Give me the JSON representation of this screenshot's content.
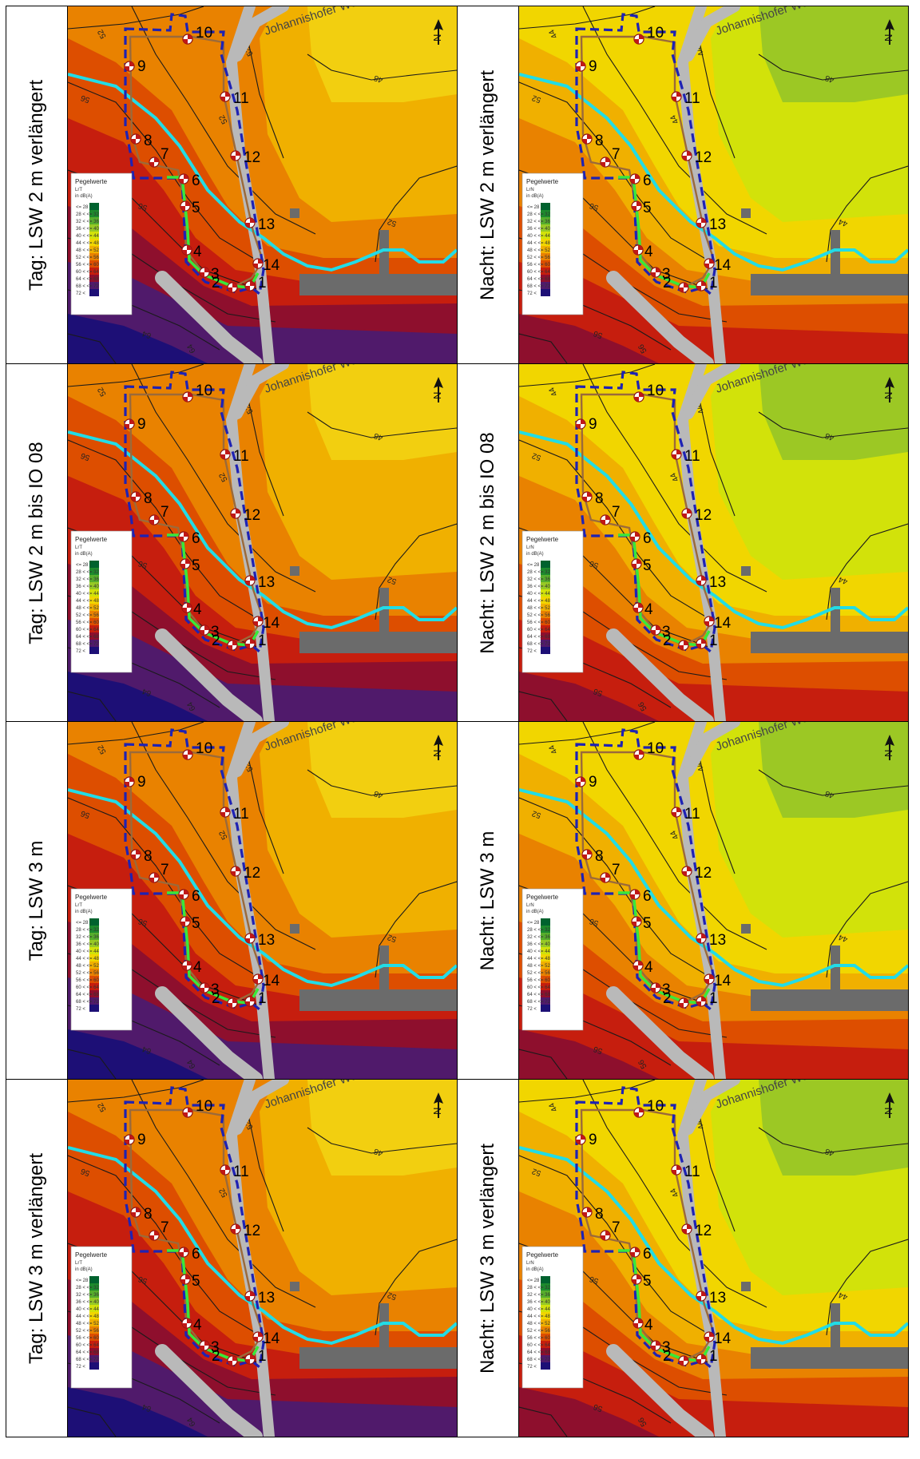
{
  "rows": [
    {
      "tag_label": "Tag: LSW 2 m verlängert",
      "nacht_label": "Nacht: LSW 2 m verlängert",
      "contours_tag": [
        "52",
        "48",
        "52",
        "56",
        "52",
        "56",
        "60",
        "64",
        "64",
        "52"
      ],
      "contours_nacht": [
        "44",
        "48",
        "44",
        "52",
        "44",
        "56",
        "60",
        "56",
        "56",
        "44"
      ]
    },
    {
      "tag_label": "Tag: LSW 2 m bis IO 08",
      "nacht_label": "Nacht: LSW 2 m bis IO 08",
      "contours_tag": [
        "52",
        "48",
        "52",
        "56",
        "52",
        "56",
        "60",
        "64",
        "64",
        "52"
      ],
      "contours_nacht": [
        "44",
        "48",
        "44",
        "52",
        "44",
        "56",
        "60",
        "56",
        "56",
        "44"
      ]
    },
    {
      "tag_label": "Tag: LSW 3 m",
      "nacht_label": "Nacht: LSW 3 m",
      "contours_tag": [
        "52",
        "48",
        "52",
        "56",
        "52",
        "56",
        "60",
        "64",
        "64",
        "52"
      ],
      "contours_nacht": [
        "44",
        "48",
        "44",
        "52",
        "44",
        "56",
        "60",
        "56",
        "56",
        "44"
      ]
    },
    {
      "tag_label": "Tag: LSW 3 m verlängert",
      "nacht_label": "Nacht: LSW 3 m verlängert",
      "contours_tag": [
        "52",
        "48",
        "52",
        "56",
        "52",
        "56",
        "60",
        "64",
        "64",
        "52"
      ],
      "contours_nacht": [
        "44",
        "48",
        "44",
        "52",
        "44",
        "56",
        "60",
        "56",
        "56",
        "44"
      ]
    }
  ],
  "map": {
    "street_name": "Johannishofer We",
    "north_label": "N",
    "points": [
      "1",
      "2",
      "3",
      "4",
      "5",
      "6",
      "7",
      "8",
      "9",
      "10",
      "11",
      "12",
      "13",
      "14"
    ]
  },
  "legend": {
    "title": "Pegelwerte",
    "metric_tag": "LrT",
    "metric_nacht": "LrN",
    "unit": "in dB(A)",
    "classes": [
      {
        "range": "<= 28",
        "color": "#00622e"
      },
      {
        "range": "28 <   <= 32",
        "color": "#1d8a2d"
      },
      {
        "range": "32 <   <= 36",
        "color": "#56ad2c"
      },
      {
        "range": "36 <   <= 40",
        "color": "#97c925"
      },
      {
        "range": "40 <   <= 44",
        "color": "#d2e20a"
      },
      {
        "range": "44 <   <= 48",
        "color": "#f1d600"
      },
      {
        "range": "48 <   <= 52",
        "color": "#f0b000"
      },
      {
        "range": "52 <   <= 56",
        "color": "#e98200"
      },
      {
        "range": "56 <   <= 60",
        "color": "#dd4e00"
      },
      {
        "range": "60 <   <= 64",
        "color": "#c61e0e"
      },
      {
        "range": "64 <   <= 68",
        "color": "#8e0f2d"
      },
      {
        "range": "68 <   <= 72",
        "color": "#501a6b"
      },
      {
        "range": "72 <",
        "color": "#1d0f76"
      }
    ]
  }
}
